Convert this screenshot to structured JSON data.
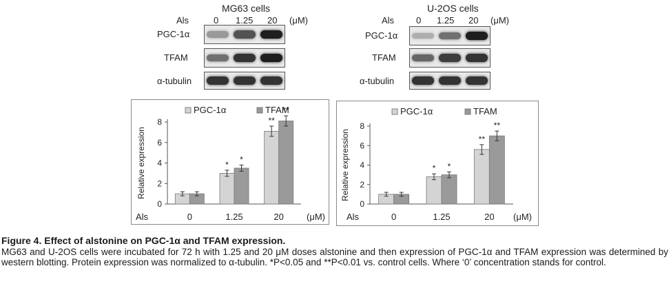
{
  "blots": [
    {
      "title": "MG63 cells",
      "treatment_label": "Als",
      "lanes": [
        "0",
        "1.25",
        "20"
      ],
      "unit": "(μM)",
      "rows": [
        {
          "label": "PGC-1α",
          "intensity": [
            0.35,
            0.7,
            0.95
          ]
        },
        {
          "label": "TFAM",
          "intensity": [
            0.55,
            0.85,
            0.95
          ]
        },
        {
          "label": "α-tubulin",
          "intensity": [
            0.85,
            0.85,
            0.85
          ]
        }
      ]
    },
    {
      "title": "U-2OS cells",
      "treatment_label": "Als",
      "lanes": [
        "0",
        "1.25",
        "20"
      ],
      "unit": "(μM)",
      "rows": [
        {
          "label": "PGC-1α",
          "intensity": [
            0.25,
            0.55,
            0.95
          ]
        },
        {
          "label": "TFAM",
          "intensity": [
            0.6,
            0.8,
            0.85
          ]
        },
        {
          "label": "α-tubulin",
          "intensity": [
            0.85,
            0.85,
            0.85
          ]
        }
      ]
    }
  ],
  "chart_data": [
    {
      "type": "bar",
      "categories": [
        "0",
        "1.25",
        "20"
      ],
      "x_prefix": "Als",
      "x_unit": "(μM)",
      "ylabel": "Relative expression",
      "ylim": [
        0,
        8
      ],
      "yticks": [
        0,
        2,
        4,
        6,
        8
      ],
      "legend_position": "top",
      "series": [
        {
          "name": "PGC-1α",
          "color": "#d4d4d4",
          "values": [
            1.0,
            3.0,
            7.1
          ],
          "errors": [
            0.2,
            0.3,
            0.5
          ],
          "significance": [
            "",
            "*",
            "**"
          ]
        },
        {
          "name": "TFAM",
          "color": "#9a9a9a",
          "values": [
            1.0,
            3.5,
            8.1
          ],
          "errors": [
            0.2,
            0.3,
            0.5
          ],
          "significance": [
            "",
            "*",
            "**"
          ]
        }
      ]
    },
    {
      "type": "bar",
      "categories": [
        "0",
        "1.25",
        "20"
      ],
      "x_prefix": "Als",
      "x_unit": "(μM)",
      "ylabel": "Relative expression",
      "ylim": [
        0,
        8
      ],
      "yticks": [
        0,
        2,
        4,
        6,
        8
      ],
      "legend_position": "top",
      "series": [
        {
          "name": "PGC-1α",
          "color": "#d4d4d4",
          "values": [
            1.0,
            2.8,
            5.6
          ],
          "errors": [
            0.2,
            0.3,
            0.5
          ],
          "significance": [
            "",
            "*",
            "**"
          ]
        },
        {
          "name": "TFAM",
          "color": "#9a9a9a",
          "values": [
            1.0,
            3.0,
            7.0
          ],
          "errors": [
            0.2,
            0.3,
            0.5
          ],
          "significance": [
            "",
            "*",
            "**"
          ]
        }
      ]
    }
  ],
  "caption": {
    "title": "Figure 4. Effect of alstonine on PGC-1α and TFAM expression.",
    "body": "MG63 and U-2OS cells were incubated for 72 h with 1.25 and 20 μM doses alstonine and then expression of PGC-1α and TFAM expression was determined by western blotting. Protein expression was normalized to α-tubulin. *P<0.05 and **P<0.01 vs. control cells. Where ‘0’ concentration stands for control."
  }
}
